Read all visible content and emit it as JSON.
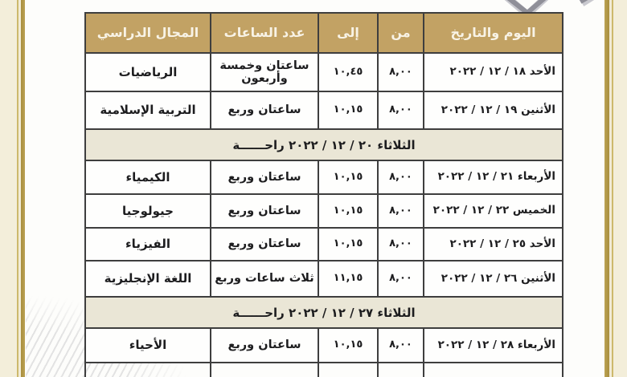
{
  "page": {
    "language": "ar",
    "direction": "rtl",
    "background_color": "#f3eeda",
    "paper_color": "#fdfdfb",
    "gold_rule_color": "#a88e3e",
    "header_bg_color": "#c2a264",
    "header_text_color": "#f8f3e6",
    "rest_row_bg_color": "#eae6d6",
    "grid_border_color": "#3e3e3e",
    "decoration": "top-right-flourish-cropped"
  },
  "table": {
    "headers": [
      {
        "key": "day",
        "label": "اليوم والتاريخ"
      },
      {
        "key": "from",
        "label": "من"
      },
      {
        "key": "to",
        "label": "إلى"
      },
      {
        "key": "hours",
        "label": "عدد الساعات"
      },
      {
        "key": "subject",
        "label": "المجال الدراسي"
      }
    ],
    "rows": [
      {
        "type": "exam",
        "day": "الأحد ١٨ / ١٢ / ٢٠٢٢",
        "from": "٨,٠٠",
        "to": "١٠,٤٥",
        "hours": "ساعتان وخمسة وأربعون",
        "subject": "الرياضيات"
      },
      {
        "type": "exam",
        "day": "الأثنين ١٩ / ١٢ / ٢٠٢٢",
        "from": "٨,٠٠",
        "to": "١٠,١٥",
        "hours": "ساعتان وربع",
        "subject": "التربية الإسلامية"
      },
      {
        "type": "rest",
        "label": "الثلاثاء ٢٠ / ١٢ / ٢٠٢٢ راحــــــة"
      },
      {
        "type": "exam",
        "day": "الأربعاء ٢١ / ١٢ / ٢٠٢٢",
        "from": "٨,٠٠",
        "to": "١٠,١٥",
        "hours": "ساعتان وربع",
        "subject": "الكيمياء"
      },
      {
        "type": "exam",
        "day": "الخميس ٢٢ / ١٢ / ٢٠٢٢",
        "from": "٨,٠٠",
        "to": "١٠,١٥",
        "hours": "ساعتان وربع",
        "subject": "جيولوجيا"
      },
      {
        "type": "exam",
        "day": "الأحد ٢٥ / ١٢ / ٢٠٢٢",
        "from": "٨,٠٠",
        "to": "١٠,١٥",
        "hours": "ساعتان وربع",
        "subject": "الفيزياء"
      },
      {
        "type": "exam",
        "day": "الأثنين ٢٦ / ١٢ / ٢٠٢٢",
        "from": "٨,٠٠",
        "to": "١١,١٥",
        "hours": "ثلاث ساعات وربع",
        "subject": "اللغة الإنجليزية"
      },
      {
        "type": "rest",
        "label": "الثلاثاء ٢٧ / ١٢ / ٢٠٢٢ راحــــــة"
      },
      {
        "type": "exam",
        "day": "الأربعاء ٢٨ / ١٢ / ٢٠٢٢",
        "from": "٨,٠٠",
        "to": "١٠,١٥",
        "hours": "ساعتان وربع",
        "subject": "الأحياء"
      },
      {
        "type": "exam",
        "day": "",
        "from": "",
        "to": "",
        "hours": "",
        "subject": "",
        "partial": true
      }
    ]
  }
}
